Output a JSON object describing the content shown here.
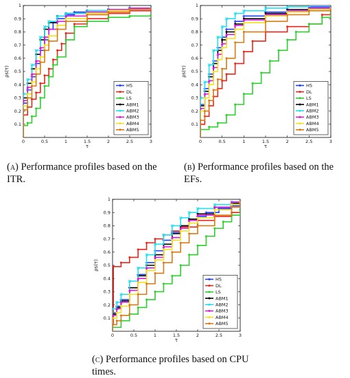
{
  "captions": [
    {
      "tag": "(a)",
      "text": "Performance profiles based on the ITR."
    },
    {
      "tag": "(b)",
      "text": "Performance profiles based on the EFs."
    },
    {
      "tag": "(c)",
      "text": "Performance profiles based on CPU times."
    }
  ],
  "series_colors": {
    "HS": "#1f3fff",
    "DL": "#e8261a",
    "LS": "#2bd12b",
    "ABM1": "#000000",
    "ABM2": "#22e0f0",
    "ABM3": "#d91ad9",
    "ABM4": "#f2e21a",
    "ABM5": "#d97a14"
  },
  "chart_data": [
    {
      "type": "line",
      "xlabel": "τ",
      "ylabel": "ρs(τ)",
      "xlim": [
        0,
        3
      ],
      "ylim": [
        0,
        1
      ],
      "xticks": [
        "0",
        "0.5",
        "1",
        "1.5",
        "2",
        "2.5",
        "3"
      ],
      "yticks": [
        "0.1",
        "0.2",
        "0.3",
        "0.4",
        "0.5",
        "0.6",
        "0.7",
        "0.8",
        "0.9",
        "1"
      ],
      "legend": "bottom-right",
      "series": [
        {
          "name": "HS",
          "x": [
            0,
            0.1,
            0.2,
            0.3,
            0.4,
            0.5,
            0.6,
            0.7,
            0.8,
            1.0,
            1.2,
            1.5,
            2.0,
            2.5,
            3.0
          ],
          "y": [
            0.26,
            0.36,
            0.46,
            0.56,
            0.66,
            0.74,
            0.82,
            0.87,
            0.9,
            0.93,
            0.95,
            0.96,
            0.97,
            0.98,
            0.98
          ]
        },
        {
          "name": "DL",
          "x": [
            0,
            0.1,
            0.2,
            0.3,
            0.4,
            0.5,
            0.6,
            0.7,
            0.8,
            0.9,
            1.0,
            1.2,
            1.5,
            2.0,
            2.5,
            3.0
          ],
          "y": [
            0.17,
            0.23,
            0.29,
            0.34,
            0.41,
            0.47,
            0.52,
            0.59,
            0.66,
            0.71,
            0.79,
            0.86,
            0.9,
            0.94,
            0.96,
            0.98
          ]
        },
        {
          "name": "LS",
          "x": [
            0,
            0.1,
            0.2,
            0.3,
            0.4,
            0.5,
            0.6,
            0.7,
            0.8,
            1.0,
            1.2,
            1.5,
            2.0,
            2.5,
            3.0
          ],
          "y": [
            0.09,
            0.11,
            0.16,
            0.22,
            0.3,
            0.39,
            0.46,
            0.55,
            0.61,
            0.74,
            0.84,
            0.88,
            0.91,
            0.92,
            0.93
          ]
        },
        {
          "name": "ABM1",
          "x": [
            0,
            0.1,
            0.2,
            0.3,
            0.4,
            0.5,
            0.6,
            0.8,
            1.0,
            1.5,
            2.0,
            2.5,
            3.0
          ],
          "y": [
            0.3,
            0.41,
            0.52,
            0.63,
            0.74,
            0.82,
            0.87,
            0.92,
            0.94,
            0.96,
            0.97,
            0.98,
            0.98
          ]
        },
        {
          "name": "ABM2",
          "x": [
            0,
            0.1,
            0.2,
            0.3,
            0.4,
            0.5,
            0.6,
            0.8,
            1.0,
            1.5,
            2.0,
            2.5,
            3.0
          ],
          "y": [
            0.33,
            0.44,
            0.55,
            0.66,
            0.76,
            0.84,
            0.88,
            0.92,
            0.94,
            0.96,
            0.97,
            0.98,
            0.99
          ]
        },
        {
          "name": "ABM3",
          "x": [
            0,
            0.1,
            0.2,
            0.3,
            0.4,
            0.5,
            0.6,
            0.8,
            1.0,
            1.5,
            2.0,
            2.5,
            3.0
          ],
          "y": [
            0.28,
            0.38,
            0.48,
            0.58,
            0.68,
            0.76,
            0.82,
            0.88,
            0.92,
            0.95,
            0.97,
            0.98,
            0.98
          ]
        },
        {
          "name": "ABM4",
          "x": [
            0,
            0.1,
            0.2,
            0.3,
            0.4,
            0.5,
            0.6,
            0.8,
            1.0,
            1.5,
            2.0,
            2.5,
            3.0
          ],
          "y": [
            0.24,
            0.33,
            0.42,
            0.52,
            0.61,
            0.7,
            0.77,
            0.85,
            0.9,
            0.94,
            0.96,
            0.97,
            0.98
          ]
        },
        {
          "name": "ABM5",
          "x": [
            0,
            0.1,
            0.2,
            0.3,
            0.4,
            0.5,
            0.6,
            0.8,
            1.0,
            1.5,
            2.0,
            2.5,
            3.0
          ],
          "y": [
            0.21,
            0.3,
            0.39,
            0.48,
            0.57,
            0.66,
            0.73,
            0.82,
            0.88,
            0.93,
            0.95,
            0.97,
            0.98
          ]
        }
      ]
    },
    {
      "type": "line",
      "xlabel": "τ",
      "ylabel": "ρs(τ)",
      "xlim": [
        0,
        3
      ],
      "ylim": [
        0,
        1
      ],
      "xticks": [
        "0",
        "0.5",
        "1",
        "1.5",
        "2",
        "2.5",
        "3"
      ],
      "yticks": [
        "0.1",
        "0.2",
        "0.3",
        "0.4",
        "0.5",
        "0.6",
        "0.7",
        "0.8",
        "0.9",
        "1"
      ],
      "legend": "bottom-right",
      "series": [
        {
          "name": "HS",
          "x": [
            0,
            0.1,
            0.2,
            0.3,
            0.4,
            0.5,
            0.6,
            0.8,
            1.0,
            1.5,
            2.0,
            2.5,
            3.0
          ],
          "y": [
            0.25,
            0.37,
            0.48,
            0.58,
            0.68,
            0.76,
            0.82,
            0.88,
            0.92,
            0.95,
            0.97,
            0.99,
            1.0
          ]
        },
        {
          "name": "DL",
          "x": [
            0,
            0.1,
            0.2,
            0.3,
            0.4,
            0.5,
            0.6,
            0.8,
            1.0,
            1.2,
            1.5,
            2.0,
            2.5,
            2.8,
            3.0
          ],
          "y": [
            0.1,
            0.16,
            0.24,
            0.31,
            0.37,
            0.43,
            0.48,
            0.56,
            0.65,
            0.73,
            0.8,
            0.84,
            0.86,
            0.93,
            0.96
          ]
        },
        {
          "name": "LS",
          "x": [
            0,
            0.2,
            0.4,
            0.6,
            0.8,
            1.0,
            1.2,
            1.4,
            1.6,
            1.8,
            2.0,
            2.2,
            2.5,
            2.8,
            3.0
          ],
          "y": [
            0.06,
            0.08,
            0.11,
            0.17,
            0.25,
            0.33,
            0.41,
            0.49,
            0.58,
            0.66,
            0.74,
            0.8,
            0.86,
            0.91,
            0.94
          ]
        },
        {
          "name": "ABM1",
          "x": [
            0,
            0.1,
            0.2,
            0.3,
            0.4,
            0.5,
            0.6,
            0.8,
            1.0,
            1.5,
            2.0,
            2.5,
            3.0
          ],
          "y": [
            0.24,
            0.35,
            0.46,
            0.56,
            0.66,
            0.74,
            0.8,
            0.86,
            0.9,
            0.94,
            0.97,
            0.98,
            0.99
          ]
        },
        {
          "name": "ABM2",
          "x": [
            0,
            0.1,
            0.2,
            0.3,
            0.4,
            0.5,
            0.6,
            0.8,
            1.0,
            1.5,
            2.0,
            2.5,
            3.0
          ],
          "y": [
            0.3,
            0.42,
            0.55,
            0.66,
            0.76,
            0.84,
            0.9,
            0.94,
            0.96,
            0.98,
            0.99,
            1.0,
            1.0
          ]
        },
        {
          "name": "ABM3",
          "x": [
            0,
            0.1,
            0.2,
            0.3,
            0.4,
            0.5,
            0.6,
            0.8,
            1.0,
            1.5,
            2.0,
            2.5,
            3.0
          ],
          "y": [
            0.22,
            0.33,
            0.43,
            0.53,
            0.63,
            0.71,
            0.78,
            0.85,
            0.89,
            0.93,
            0.96,
            0.98,
            0.99
          ]
        },
        {
          "name": "ABM4",
          "x": [
            0,
            0.1,
            0.2,
            0.3,
            0.4,
            0.5,
            0.6,
            0.8,
            1.0,
            1.5,
            2.0,
            2.5,
            3.0
          ],
          "y": [
            0.2,
            0.3,
            0.4,
            0.5,
            0.59,
            0.68,
            0.75,
            0.82,
            0.87,
            0.92,
            0.95,
            0.97,
            0.98
          ]
        },
        {
          "name": "ABM5",
          "x": [
            0,
            0.1,
            0.2,
            0.3,
            0.4,
            0.5,
            0.6,
            0.8,
            1.0,
            1.5,
            2.0,
            2.5,
            3.0
          ],
          "y": [
            0.13,
            0.2,
            0.28,
            0.36,
            0.44,
            0.52,
            0.6,
            0.72,
            0.8,
            0.88,
            0.93,
            0.96,
            0.97
          ]
        }
      ]
    },
    {
      "type": "line",
      "xlabel": "τ",
      "ylabel": "ρs(τ)",
      "xlim": [
        0,
        3
      ],
      "ylim": [
        0,
        1
      ],
      "xticks": [
        "0",
        "0.5",
        "1",
        "1.5",
        "2",
        "2.5",
        "3"
      ],
      "yticks": [
        "0.1",
        "0.2",
        "0.3",
        "0.4",
        "0.5",
        "0.6",
        "0.7",
        "0.8",
        "0.9",
        "1"
      ],
      "legend": "bottom-right",
      "series": [
        {
          "name": "HS",
          "x": [
            0,
            0.1,
            0.2,
            0.4,
            0.6,
            0.8,
            1.0,
            1.2,
            1.4,
            1.6,
            1.8,
            2.0,
            2.2,
            2.5,
            2.8,
            3.0
          ],
          "y": [
            0.14,
            0.19,
            0.24,
            0.33,
            0.43,
            0.52,
            0.61,
            0.69,
            0.75,
            0.8,
            0.84,
            0.87,
            0.9,
            0.93,
            0.95,
            0.97
          ]
        },
        {
          "name": "DL",
          "x": [
            0,
            0.02,
            0.2,
            0.4,
            0.6,
            0.8,
            1.0,
            1.2,
            1.4,
            1.6,
            2.0,
            2.4,
            2.8,
            3.0
          ],
          "y": [
            0.05,
            0.49,
            0.52,
            0.56,
            0.62,
            0.67,
            0.7,
            0.73,
            0.76,
            0.79,
            0.84,
            0.87,
            0.9,
            0.92
          ]
        },
        {
          "name": "LS",
          "x": [
            0,
            0.2,
            0.4,
            0.6,
            0.8,
            1.0,
            1.2,
            1.4,
            1.6,
            1.8,
            2.0,
            2.2,
            2.4,
            2.6,
            2.8,
            3.0
          ],
          "y": [
            0.03,
            0.08,
            0.13,
            0.18,
            0.24,
            0.3,
            0.36,
            0.42,
            0.5,
            0.58,
            0.65,
            0.72,
            0.78,
            0.83,
            0.88,
            0.92
          ]
        },
        {
          "name": "ABM1",
          "x": [
            0,
            0.1,
            0.2,
            0.4,
            0.6,
            0.8,
            1.0,
            1.2,
            1.4,
            1.6,
            1.8,
            2.0,
            2.4,
            2.8,
            3.0
          ],
          "y": [
            0.13,
            0.18,
            0.23,
            0.33,
            0.42,
            0.5,
            0.58,
            0.66,
            0.74,
            0.8,
            0.85,
            0.89,
            0.94,
            0.97,
            0.98
          ]
        },
        {
          "name": "ABM2",
          "x": [
            0,
            0.1,
            0.2,
            0.4,
            0.6,
            0.8,
            1.0,
            1.2,
            1.4,
            1.6,
            1.8,
            2.0,
            2.4,
            2.8,
            3.0
          ],
          "y": [
            0.17,
            0.22,
            0.28,
            0.38,
            0.48,
            0.58,
            0.66,
            0.73,
            0.8,
            0.86,
            0.9,
            0.93,
            0.96,
            0.98,
            0.99
          ]
        },
        {
          "name": "ABM3",
          "x": [
            0,
            0.1,
            0.2,
            0.4,
            0.6,
            0.8,
            1.0,
            1.2,
            1.4,
            1.6,
            1.8,
            2.0,
            2.4,
            2.8,
            3.0
          ],
          "y": [
            0.12,
            0.17,
            0.22,
            0.31,
            0.4,
            0.48,
            0.56,
            0.64,
            0.71,
            0.78,
            0.84,
            0.88,
            0.94,
            0.98,
            0.99
          ]
        },
        {
          "name": "ABM4",
          "x": [
            0,
            0.1,
            0.2,
            0.4,
            0.6,
            0.8,
            1.0,
            1.2,
            1.4,
            1.6,
            1.8,
            2.0,
            2.4,
            2.8,
            3.0
          ],
          "y": [
            0.1,
            0.14,
            0.19,
            0.28,
            0.37,
            0.46,
            0.54,
            0.62,
            0.69,
            0.76,
            0.82,
            0.86,
            0.92,
            0.96,
            0.98
          ]
        },
        {
          "name": "ABM5",
          "x": [
            0,
            0.1,
            0.2,
            0.4,
            0.6,
            0.8,
            1.0,
            1.2,
            1.4,
            1.6,
            1.8,
            2.0,
            2.4,
            2.8,
            3.0
          ],
          "y": [
            0.05,
            0.08,
            0.12,
            0.2,
            0.28,
            0.36,
            0.44,
            0.52,
            0.6,
            0.67,
            0.74,
            0.8,
            0.88,
            0.94,
            0.97
          ]
        }
      ]
    }
  ]
}
